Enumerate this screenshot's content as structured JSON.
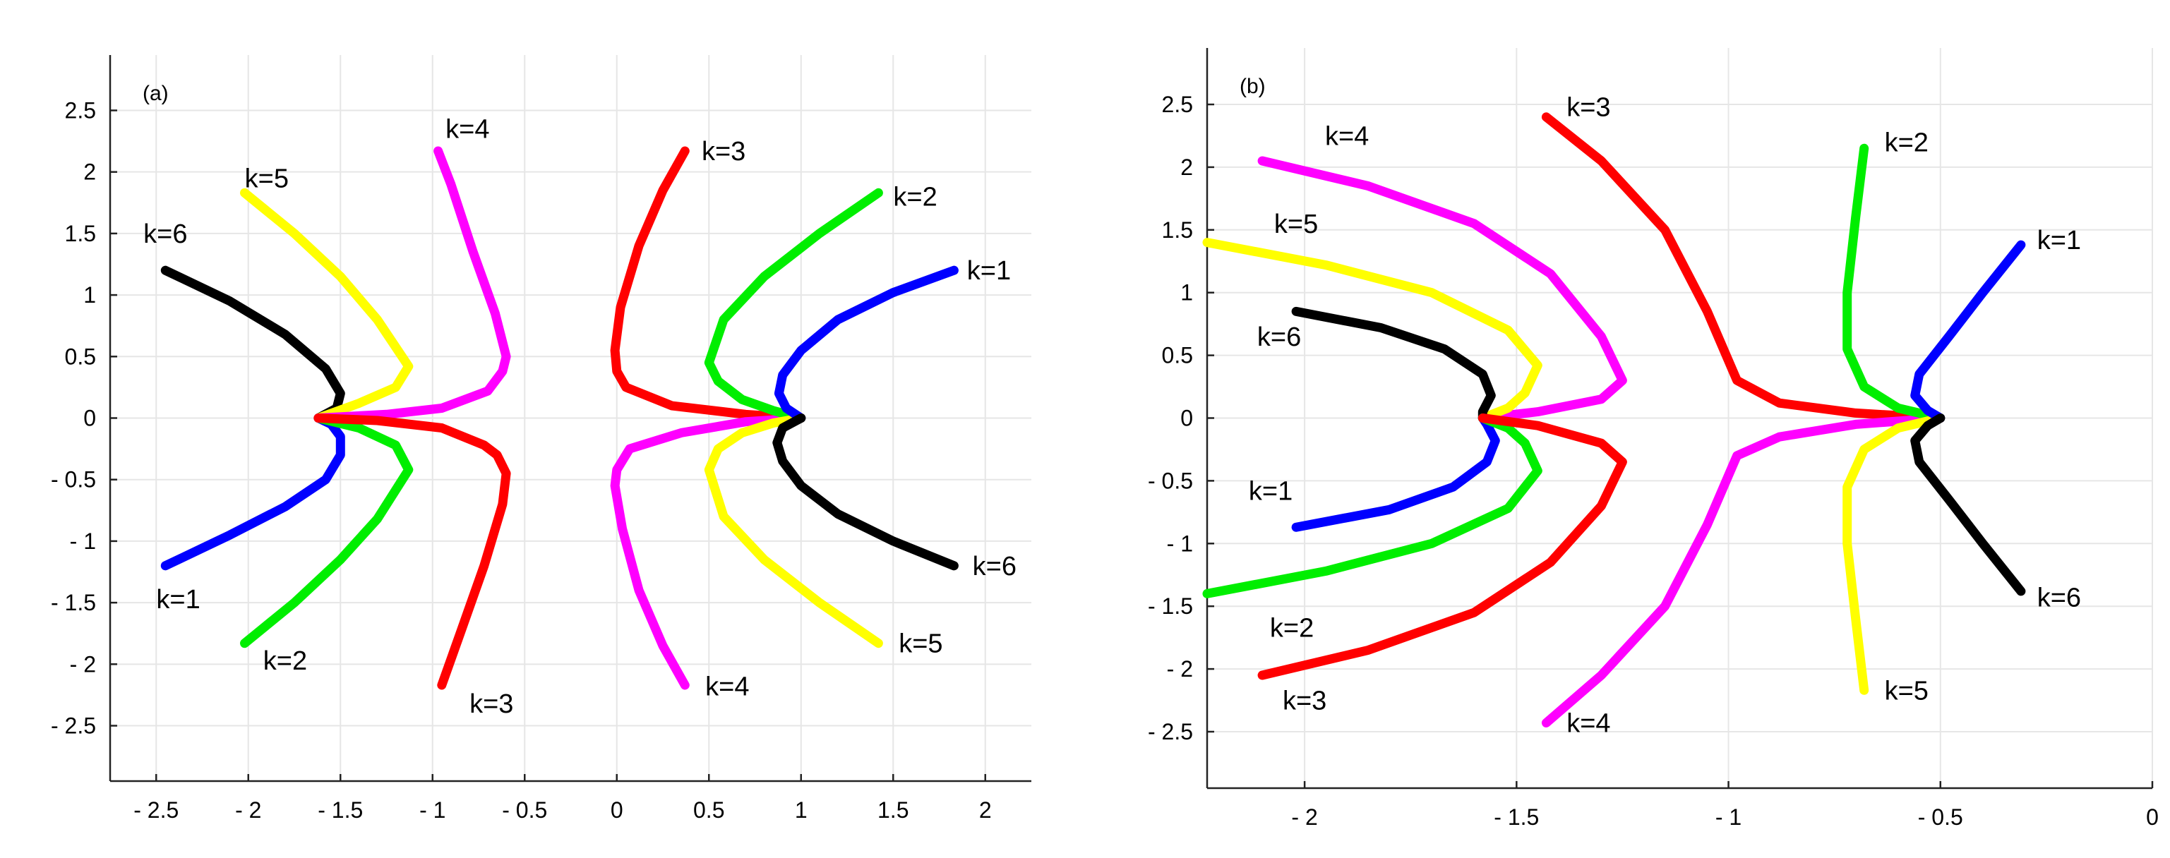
{
  "colors": {
    "blue": "#0000ff",
    "green": "#00ee00",
    "red": "#ff0000",
    "magenta": "#ff00ff",
    "yellow": "#ffff00",
    "black": "#000000"
  },
  "chart_data": [
    {
      "type": "line",
      "panel_label": "(a)",
      "xlim": [
        -2.75,
        2.25
      ],
      "ylim": [
        -2.95,
        2.95
      ],
      "xticks": [
        -2.5,
        -2,
        -1.5,
        -1,
        -0.5,
        0,
        0.5,
        1,
        1.5,
        2
      ],
      "yticks": [
        -2.5,
        -2,
        -1.5,
        -1,
        -0.5,
        0,
        0.5,
        1,
        1.5,
        2,
        2.5
      ],
      "xtick_labels": [
        "- 2.5",
        "- 2",
        "- 1.5",
        "- 1",
        "- 0.5",
        "0",
        "0.5",
        "1",
        "1.5",
        "2"
      ],
      "ytick_labels": [
        "- 2.5",
        "- 2",
        "- 1.5",
        "- 1",
        "- 0.5",
        "0",
        "0.5",
        "1",
        "1.5",
        "2",
        "2.5"
      ],
      "grid": true,
      "series": [
        {
          "color": "black",
          "points": [
            [
              -2.45,
              1.2
            ],
            [
              -2.1,
              0.95
            ],
            [
              -1.8,
              0.68
            ],
            [
              -1.58,
              0.4
            ],
            [
              -1.5,
              0.2
            ],
            [
              -1.52,
              0.08
            ],
            [
              -1.62,
              0
            ]
          ]
        },
        {
          "color": "blue",
          "points": [
            [
              -2.45,
              -1.2
            ],
            [
              -2.1,
              -0.95
            ],
            [
              -1.8,
              -0.72
            ],
            [
              -1.58,
              -0.5
            ],
            [
              -1.5,
              -0.3
            ],
            [
              -1.5,
              -0.15
            ],
            [
              -1.55,
              -0.05
            ],
            [
              -1.62,
              0
            ]
          ]
        },
        {
          "color": "yellow",
          "points": [
            [
              -2.02,
              1.83
            ],
            [
              -1.75,
              1.5
            ],
            [
              -1.5,
              1.15
            ],
            [
              -1.3,
              0.8
            ],
            [
              -1.13,
              0.42
            ],
            [
              -1.2,
              0.25
            ],
            [
              -1.4,
              0.12
            ],
            [
              -1.62,
              0
            ]
          ]
        },
        {
          "color": "green",
          "points": [
            [
              -2.02,
              -1.83
            ],
            [
              -1.75,
              -1.5
            ],
            [
              -1.5,
              -1.15
            ],
            [
              -1.3,
              -0.82
            ],
            [
              -1.13,
              -0.42
            ],
            [
              -1.2,
              -0.22
            ],
            [
              -1.4,
              -0.08
            ],
            [
              -1.62,
              0
            ]
          ]
        },
        {
          "color": "magenta",
          "points": [
            [
              -0.97,
              2.17
            ],
            [
              -0.9,
              1.9
            ],
            [
              -0.78,
              1.35
            ],
            [
              -0.66,
              0.85
            ],
            [
              -0.6,
              0.5
            ],
            [
              -0.62,
              0.38
            ],
            [
              -0.7,
              0.22
            ],
            [
              -0.95,
              0.08
            ],
            [
              -1.25,
              0.03
            ],
            [
              -1.62,
              0
            ]
          ]
        },
        {
          "color": "red",
          "points": [
            [
              -0.95,
              -2.17
            ],
            [
              -0.85,
              -1.75
            ],
            [
              -0.72,
              -1.2
            ],
            [
              -0.62,
              -0.7
            ],
            [
              -0.6,
              -0.45
            ],
            [
              -0.65,
              -0.3
            ],
            [
              -0.72,
              -0.22
            ],
            [
              -0.95,
              -0.08
            ],
            [
              -1.3,
              -0.02
            ],
            [
              -1.62,
              0
            ]
          ]
        },
        {
          "color": "red",
          "points": [
            [
              0.37,
              2.17
            ],
            [
              0.25,
              1.85
            ],
            [
              0.12,
              1.4
            ],
            [
              0.02,
              0.9
            ],
            [
              -0.01,
              0.55
            ],
            [
              0,
              0.38
            ],
            [
              0.05,
              0.25
            ],
            [
              0.3,
              0.1
            ],
            [
              0.7,
              0.03
            ],
            [
              1,
              0
            ]
          ]
        },
        {
          "color": "magenta",
          "points": [
            [
              0.37,
              -2.17
            ],
            [
              0.25,
              -1.85
            ],
            [
              0.12,
              -1.4
            ],
            [
              0.03,
              -0.9
            ],
            [
              -0.01,
              -0.55
            ],
            [
              0,
              -0.42
            ],
            [
              0.07,
              -0.25
            ],
            [
              0.35,
              -0.12
            ],
            [
              0.7,
              -0.03
            ],
            [
              1,
              0
            ]
          ]
        },
        {
          "color": "green",
          "points": [
            [
              1.42,
              1.83
            ],
            [
              1.1,
              1.5
            ],
            [
              0.8,
              1.15
            ],
            [
              0.58,
              0.8
            ],
            [
              0.5,
              0.45
            ],
            [
              0.55,
              0.3
            ],
            [
              0.68,
              0.15
            ],
            [
              0.85,
              0.06
            ],
            [
              1,
              0
            ]
          ]
        },
        {
          "color": "yellow",
          "points": [
            [
              1.42,
              -1.83
            ],
            [
              1.1,
              -1.5
            ],
            [
              0.8,
              -1.15
            ],
            [
              0.58,
              -0.8
            ],
            [
              0.5,
              -0.42
            ],
            [
              0.55,
              -0.25
            ],
            [
              0.68,
              -0.12
            ],
            [
              0.85,
              -0.04
            ],
            [
              1,
              0
            ]
          ]
        },
        {
          "color": "blue",
          "points": [
            [
              1.83,
              1.2
            ],
            [
              1.5,
              1.02
            ],
            [
              1.2,
              0.8
            ],
            [
              1,
              0.55
            ],
            [
              0.9,
              0.35
            ],
            [
              0.88,
              0.2
            ],
            [
              0.92,
              0.08
            ],
            [
              1,
              0
            ]
          ]
        },
        {
          "color": "black",
          "points": [
            [
              1.83,
              -1.2
            ],
            [
              1.5,
              -1.0
            ],
            [
              1.2,
              -0.78
            ],
            [
              1,
              -0.55
            ],
            [
              0.9,
              -0.35
            ],
            [
              0.87,
              -0.2
            ],
            [
              0.9,
              -0.08
            ],
            [
              1,
              0
            ]
          ]
        }
      ],
      "annotations": [
        {
          "text": "k=6",
          "x": -2.45,
          "y": 1.5
        },
        {
          "text": "k=5",
          "x": -1.9,
          "y": 1.95
        },
        {
          "text": "k=4",
          "x": -0.81,
          "y": 2.35
        },
        {
          "text": "k=3",
          "x": 0.58,
          "y": 2.17
        },
        {
          "text": "k=2",
          "x": 1.62,
          "y": 1.8
        },
        {
          "text": "k=1",
          "x": 2.02,
          "y": 1.2
        },
        {
          "text": "k=1",
          "x": -2.38,
          "y": -1.47
        },
        {
          "text": "k=2",
          "x": -1.8,
          "y": -1.97
        },
        {
          "text": "k=3",
          "x": -0.68,
          "y": -2.32
        },
        {
          "text": "k=4",
          "x": 0.6,
          "y": -2.18
        },
        {
          "text": "k=5",
          "x": 1.65,
          "y": -1.83
        },
        {
          "text": "k=6",
          "x": 2.05,
          "y": -1.2
        }
      ]
    },
    {
      "type": "line",
      "panel_label": "(b)",
      "xlim": [
        -2.23,
        0
      ],
      "ylim": [
        -2.95,
        2.95
      ],
      "xticks": [
        -2,
        -1.5,
        -1,
        -0.5,
        0
      ],
      "yticks": [
        -2.5,
        -2,
        -1.5,
        -1,
        -0.5,
        0,
        0.5,
        1,
        1.5,
        2,
        2.5
      ],
      "xtick_labels": [
        "- 2",
        "- 1.5",
        "- 1",
        "- 0.5",
        "0"
      ],
      "ytick_labels": [
        "- 2.5",
        "- 2",
        "- 1.5",
        "- 1",
        "- 0.5",
        "0",
        "0.5",
        "1",
        "1.5",
        "2",
        "2.5"
      ],
      "grid": true,
      "series": [
        {
          "color": "magenta",
          "points": [
            [
              -2.1,
              2.05
            ],
            [
              -1.85,
              1.85
            ],
            [
              -1.6,
              1.55
            ],
            [
              -1.42,
              1.15
            ],
            [
              -1.3,
              0.65
            ],
            [
              -1.25,
              0.3
            ],
            [
              -1.3,
              0.15
            ],
            [
              -1.45,
              0.05
            ],
            [
              -1.58,
              0
            ]
          ]
        },
        {
          "color": "yellow",
          "points": [
            [
              -2.23,
              1.4
            ],
            [
              -1.95,
              1.22
            ],
            [
              -1.7,
              1.0
            ],
            [
              -1.52,
              0.7
            ],
            [
              -1.45,
              0.42
            ],
            [
              -1.48,
              0.2
            ],
            [
              -1.52,
              0.08
            ],
            [
              -1.58,
              0
            ]
          ]
        },
        {
          "color": "black",
          "points": [
            [
              -2.02,
              0.85
            ],
            [
              -1.82,
              0.72
            ],
            [
              -1.67,
              0.55
            ],
            [
              -1.58,
              0.35
            ],
            [
              -1.56,
              0.18
            ],
            [
              -1.58,
              0.05
            ],
            [
              -1.58,
              0
            ]
          ]
        },
        {
          "color": "blue",
          "points": [
            [
              -2.02,
              -0.87
            ],
            [
              -1.8,
              -0.73
            ],
            [
              -1.65,
              -0.55
            ],
            [
              -1.57,
              -0.35
            ],
            [
              -1.55,
              -0.18
            ],
            [
              -1.57,
              -0.05
            ],
            [
              -1.58,
              0
            ]
          ]
        },
        {
          "color": "green",
          "points": [
            [
              -2.23,
              -1.4
            ],
            [
              -1.95,
              -1.22
            ],
            [
              -1.7,
              -1.0
            ],
            [
              -1.52,
              -0.72
            ],
            [
              -1.45,
              -0.42
            ],
            [
              -1.48,
              -0.2
            ],
            [
              -1.52,
              -0.08
            ],
            [
              -1.58,
              0
            ]
          ]
        },
        {
          "color": "red",
          "points": [
            [
              -2.1,
              -2.05
            ],
            [
              -1.85,
              -1.85
            ],
            [
              -1.6,
              -1.55
            ],
            [
              -1.42,
              -1.15
            ],
            [
              -1.3,
              -0.7
            ],
            [
              -1.25,
              -0.35
            ],
            [
              -1.3,
              -0.2
            ],
            [
              -1.45,
              -0.06
            ],
            [
              -1.58,
              0
            ]
          ]
        },
        {
          "color": "red",
          "points": [
            [
              -1.43,
              2.4
            ],
            [
              -1.3,
              2.05
            ],
            [
              -1.15,
              1.5
            ],
            [
              -1.05,
              0.85
            ],
            [
              -0.98,
              0.3
            ],
            [
              -0.88,
              0.12
            ],
            [
              -0.7,
              0.04
            ],
            [
              -0.5,
              0
            ]
          ]
        },
        {
          "color": "magenta",
          "points": [
            [
              -1.43,
              -2.43
            ],
            [
              -1.3,
              -2.05
            ],
            [
              -1.15,
              -1.5
            ],
            [
              -1.05,
              -0.85
            ],
            [
              -0.98,
              -0.3
            ],
            [
              -0.88,
              -0.15
            ],
            [
              -0.7,
              -0.05
            ],
            [
              -0.5,
              0
            ]
          ]
        },
        {
          "color": "green",
          "points": [
            [
              -0.68,
              2.15
            ],
            [
              -0.7,
              1.6
            ],
            [
              -0.72,
              1.0
            ],
            [
              -0.72,
              0.55
            ],
            [
              -0.68,
              0.25
            ],
            [
              -0.6,
              0.08
            ],
            [
              -0.5,
              0
            ]
          ]
        },
        {
          "color": "yellow",
          "points": [
            [
              -0.68,
              -2.17
            ],
            [
              -0.7,
              -1.6
            ],
            [
              -0.72,
              -1.0
            ],
            [
              -0.72,
              -0.55
            ],
            [
              -0.68,
              -0.25
            ],
            [
              -0.6,
              -0.08
            ],
            [
              -0.5,
              0
            ]
          ]
        },
        {
          "color": "blue",
          "points": [
            [
              -0.31,
              1.38
            ],
            [
              -0.4,
              1.0
            ],
            [
              -0.48,
              0.65
            ],
            [
              -0.55,
              0.35
            ],
            [
              -0.56,
              0.18
            ],
            [
              -0.53,
              0.06
            ],
            [
              -0.5,
              0
            ]
          ]
        },
        {
          "color": "black",
          "points": [
            [
              -0.31,
              -1.38
            ],
            [
              -0.4,
              -1.0
            ],
            [
              -0.48,
              -0.65
            ],
            [
              -0.55,
              -0.35
            ],
            [
              -0.56,
              -0.18
            ],
            [
              -0.53,
              -0.06
            ],
            [
              -0.5,
              0
            ]
          ]
        }
      ],
      "annotations": [
        {
          "text": "k=4",
          "x": -1.9,
          "y": 2.25
        },
        {
          "text": "k=5",
          "x": -2.02,
          "y": 1.55
        },
        {
          "text": "k=6",
          "x": -2.06,
          "y": 0.65
        },
        {
          "text": "k=1",
          "x": -2.08,
          "y": -0.58
        },
        {
          "text": "k=2",
          "x": -2.03,
          "y": -1.67
        },
        {
          "text": "k=3",
          "x": -2.0,
          "y": -2.25
        },
        {
          "text": "k=3",
          "x": -1.33,
          "y": 2.48
        },
        {
          "text": "k=2",
          "x": -0.58,
          "y": 2.2
        },
        {
          "text": "k=1",
          "x": -0.22,
          "y": 1.42
        },
        {
          "text": "k=4",
          "x": -1.33,
          "y": -2.43
        },
        {
          "text": "k=5",
          "x": -0.58,
          "y": -2.17
        },
        {
          "text": "k=6",
          "x": -0.22,
          "y": -1.43
        }
      ]
    }
  ]
}
